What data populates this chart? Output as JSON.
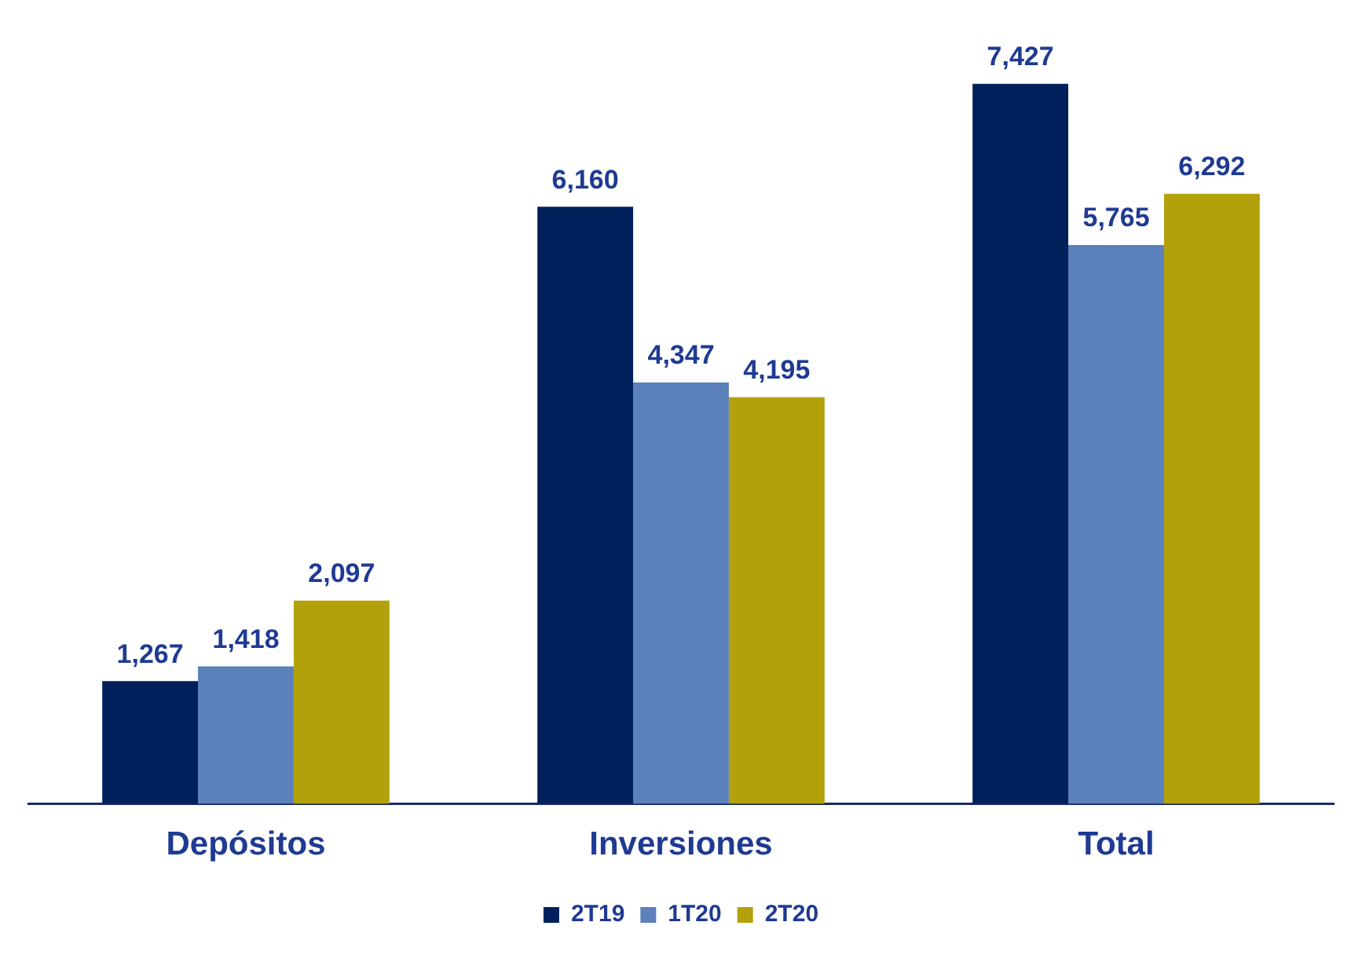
{
  "chart_data": {
    "type": "bar",
    "categories": [
      "Depósitos",
      "Inversiones",
      "Total"
    ],
    "series": [
      {
        "name": "2T19",
        "color": "#00205b",
        "values": [
          1267,
          6160,
          7427
        ],
        "value_labels": [
          "1,267",
          "6,160",
          "7,427"
        ]
      },
      {
        "name": "1T20",
        "color": "#5b80ba",
        "values": [
          1418,
          4347,
          5765
        ],
        "value_labels": [
          "1,418",
          "4,347",
          "5,765"
        ]
      },
      {
        "name": "2T20",
        "color": "#b3a10b",
        "values": [
          2097,
          4195,
          6292
        ],
        "value_labels": [
          "2,097",
          "4,195",
          "6,292"
        ]
      }
    ],
    "legend": "bottom",
    "grid": false,
    "tick_labels": "x"
  }
}
